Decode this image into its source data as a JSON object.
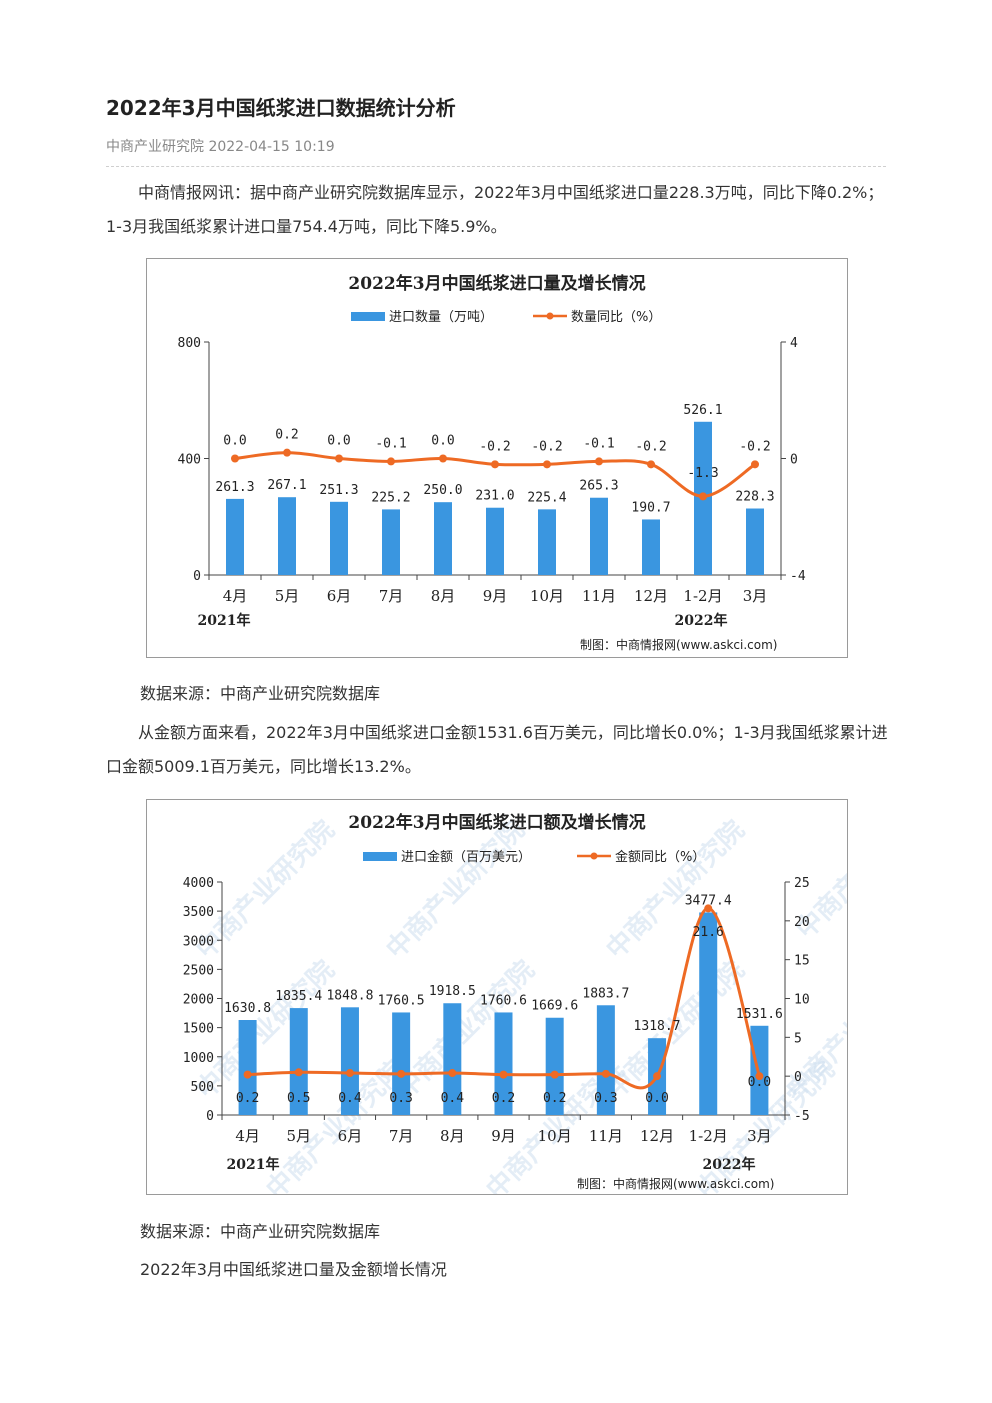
{
  "article": {
    "title": "2022年3月中国纸浆进口数据统计分析",
    "meta": "中商产业研究院 2022-04-15 10:19",
    "para1": "中商情报网讯：据中商产业研究院数据库显示，2022年3月中国纸浆进口量228.3万吨，同比下降0.2%；1-3月我国纸浆累计进口量754.4万吨，同比下降5.9%。",
    "source1": "数据来源：中商产业研究院数据库",
    "para2": "从金额方面来看，2022年3月中国纸浆进口金额1531.6百万美元，同比增长0.0%；1-3月我国纸浆累计进口金额5009.1百万美元，同比增长13.2%。",
    "source2": "数据来源：中商产业研究院数据库",
    "caption": "2022年3月中国纸浆进口量及金额增长情况"
  },
  "colors": {
    "bar": "#3a96e0",
    "line": "#ee6a24",
    "axis": "#222222"
  },
  "watermark": "中商产业研究院",
  "chart_data": [
    {
      "type": "bar",
      "title": "2022年3月中国纸浆进口量及增长情况",
      "categories": [
        "4月",
        "5月",
        "6月",
        "7月",
        "8月",
        "9月",
        "10月",
        "11月",
        "12月",
        "1-2月",
        "3月"
      ],
      "series": [
        {
          "name": "进口数量（万吨）",
          "type": "bar",
          "axis": "left",
          "values": [
            261.3,
            267.1,
            251.3,
            225.2,
            250.0,
            231.0,
            225.4,
            265.3,
            190.7,
            526.1,
            228.3
          ],
          "labels": [
            "261.3",
            "267.1",
            "251.3",
            "225.2",
            "250.0",
            "231.0",
            "225.4",
            "265.3",
            "190.7",
            "526.1",
            "228.3"
          ]
        },
        {
          "name": "数量同比（%）",
          "type": "line",
          "axis": "right",
          "values": [
            0.0,
            0.2,
            0.0,
            -0.1,
            0.0,
            -0.2,
            -0.2,
            -0.1,
            -0.2,
            -1.3,
            -0.2
          ],
          "labels": [
            "0.0",
            "0.2",
            "0.0",
            "-0.1",
            "0.0",
            "-0.2",
            "-0.2",
            "-0.1",
            "-0.2",
            "-1.3",
            "-0.2"
          ]
        }
      ],
      "ylim_left": [
        0,
        800
      ],
      "yticks_left": [
        "0",
        "400",
        "800"
      ],
      "ylim_right": [
        -4,
        4
      ],
      "yticks_right": [
        "-4",
        "0",
        "4"
      ],
      "year_labels": [
        "2021年",
        "2022年"
      ],
      "credit": "制图：中商情报网(www.askci.com)",
      "legend": "top-center",
      "grid": false
    },
    {
      "type": "bar",
      "title": "2022年3月中国纸浆进口额及增长情况",
      "categories": [
        "4月",
        "5月",
        "6月",
        "7月",
        "8月",
        "9月",
        "10月",
        "11月",
        "12月",
        "1-2月",
        "3月"
      ],
      "series": [
        {
          "name": "进口金额（百万美元）",
          "type": "bar",
          "axis": "left",
          "values": [
            1630.8,
            1835.4,
            1848.8,
            1760.5,
            1918.5,
            1760.6,
            1669.6,
            1883.7,
            1318.7,
            3477.4,
            1531.6
          ],
          "labels": [
            "1630.8",
            "1835.4",
            "1848.8",
            "1760.5",
            "1918.5",
            "1760.6",
            "1669.6",
            "1883.7",
            "1318.7",
            "3477.4",
            "1531.6"
          ]
        },
        {
          "name": "金额同比（%）",
          "type": "line",
          "axis": "right",
          "values": [
            0.2,
            0.5,
            0.4,
            0.3,
            0.4,
            0.2,
            0.2,
            0.3,
            0.0,
            21.6,
            0.0
          ],
          "labels": [
            "0.2",
            "0.5",
            "0.4",
            "0.3",
            "0.4",
            "0.2",
            "0.2",
            "0.3",
            "0.0",
            "21.6",
            "0.0"
          ]
        }
      ],
      "ylim_left": [
        0,
        4000
      ],
      "yticks_left": [
        "0",
        "500",
        "1000",
        "1500",
        "2000",
        "2500",
        "3000",
        "3500",
        "4000"
      ],
      "ylim_right": [
        -5,
        25
      ],
      "yticks_right": [
        "-5",
        "0",
        "5",
        "10",
        "15",
        "20",
        "25"
      ],
      "year_labels": [
        "2021年",
        "2022年"
      ],
      "credit": "制图：中商情报网(www.askci.com)",
      "legend": "top-center",
      "grid": false
    }
  ]
}
